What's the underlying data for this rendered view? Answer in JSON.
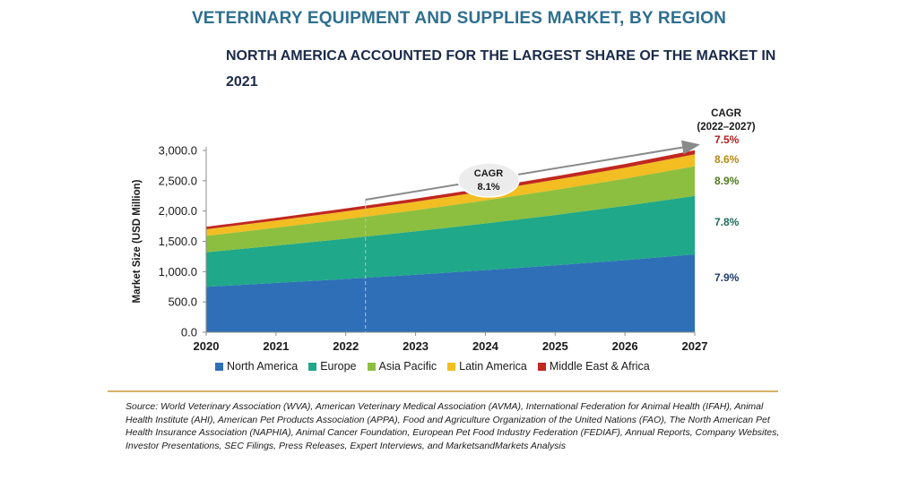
{
  "title": "VETERINARY EQUIPMENT AND SUPPLIES MARKET, BY REGION",
  "subtitle": "NORTH AMERICA ACCOUNTED FOR THE LARGEST SHARE OF THE MARKET IN 2021",
  "cagr_header": [
    "CAGR",
    "(2022–2027)"
  ],
  "overall_cagr": {
    "label": "CAGR",
    "value": "8.1%"
  },
  "source": "Source: World Veterinary Association (WVA), American Veterinary Medical Association (AVMA), International Federation for Animal Health (IFAH), Animal Health Institute (AHI), American Pet Products Association (APPA), Food and Agriculture Organization of the United Nations (FAO), The North American Pet Health Insurance Association (NAPHIA), Animal Cancer Foundation, European Pet Food Industry Federation (FEDIAF), Annual Reports, Company Websites, Investor Presentations, SEC Filings, Press Releases, Expert Interviews, and MarketsandMarkets Analysis",
  "chart_data": {
    "type": "area",
    "stacked": true,
    "x": [
      "2020",
      "2021",
      "2022",
      "2023",
      "2024",
      "2025",
      "2026",
      "2027"
    ],
    "ylabel": "Market Size (USD Million)",
    "ylim": [
      0,
      3000
    ],
    "yticks": [
      "0.0",
      "500.0",
      "1,000.0",
      "1,500.0",
      "2,000.0",
      "2,500.0",
      "3,000.0"
    ],
    "grid": false,
    "legend": "bottom",
    "series": [
      {
        "name": "North America",
        "color": "#2e6fb7",
        "cagr": "7.9%",
        "cagr_color": "#1f3d6b",
        "values": [
          750,
          815,
          880,
          950,
          1025,
          1105,
          1190,
          1285
        ]
      },
      {
        "name": "Europe",
        "color": "#1fa889",
        "cagr": "7.8%",
        "cagr_color": "#1f6b5a",
        "values": [
          570,
          615,
          665,
          715,
          770,
          830,
          895,
          965
        ]
      },
      {
        "name": "Asia Pacific",
        "color": "#8cbf3f",
        "cagr": "8.9%",
        "cagr_color": "#4e7a1e",
        "values": [
          270,
          295,
          320,
          350,
          380,
          415,
          450,
          490
        ]
      },
      {
        "name": "Latin America",
        "color": "#f2be22",
        "cagr": "8.6%",
        "cagr_color": "#b58a12",
        "values": [
          110,
          120,
          130,
          140,
          152,
          165,
          180,
          196
        ]
      },
      {
        "name": "Middle East & Africa",
        "color": "#c0281f",
        "cagr": "7.5%",
        "cagr_color": "#b01e1e",
        "values": [
          40,
          43,
          47,
          50,
          54,
          58,
          62,
          67
        ]
      }
    ],
    "marker_x": "2022"
  }
}
